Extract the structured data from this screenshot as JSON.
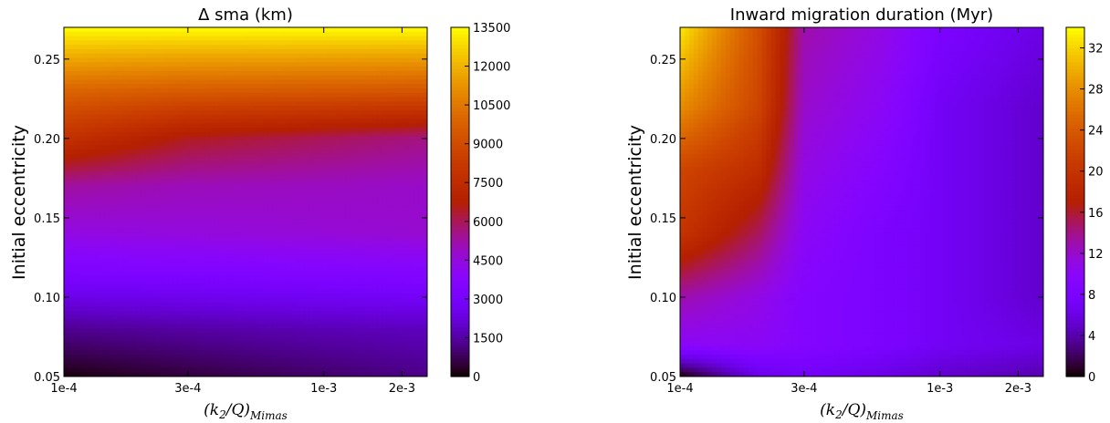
{
  "chart_data": [
    {
      "type": "heatmap",
      "title": "Δ sma (km)",
      "xlabel": "(k2/Q)Mimas",
      "xlabel_main": "(k",
      "xlabel_sub1": "2",
      "xlabel_mid": "/Q)",
      "xlabel_sub2": "Mimas",
      "ylabel": "Initial eccentricity",
      "xscale": "log",
      "xlim": [
        0.0001,
        0.0025
      ],
      "ylim": [
        0.05,
        0.27
      ],
      "xticks": [
        {
          "value": 0.0001,
          "label": "1e-4"
        },
        {
          "value": 0.0003,
          "label": "3e-4"
        },
        {
          "value": 0.001,
          "label": "1e-3"
        },
        {
          "value": 0.002,
          "label": "2e-3"
        }
      ],
      "yticks": [
        {
          "value": 0.05,
          "label": "0.05"
        },
        {
          "value": 0.1,
          "label": "0.10"
        },
        {
          "value": 0.15,
          "label": "0.15"
        },
        {
          "value": 0.2,
          "label": "0.20"
        },
        {
          "value": 0.25,
          "label": "0.25"
        }
      ],
      "colormap": "gnuplot",
      "color_range": [
        0,
        13500
      ],
      "colorbar_ticks": [
        {
          "value": 0,
          "label": "0"
        },
        {
          "value": 1500,
          "label": "1500"
        },
        {
          "value": 3000,
          "label": "3000"
        },
        {
          "value": 4500,
          "label": "4500"
        },
        {
          "value": 6000,
          "label": "6000"
        },
        {
          "value": 7500,
          "label": "7500"
        },
        {
          "value": 9000,
          "label": "9000"
        },
        {
          "value": 10500,
          "label": "10500"
        },
        {
          "value": 12000,
          "label": "12000"
        },
        {
          "value": 13500,
          "label": "13500"
        }
      ],
      "grid": false,
      "sample_x": [
        0.0001,
        0.0003,
        0.001,
        0.0025
      ],
      "sample_y": [
        0.05,
        0.08,
        0.11,
        0.14,
        0.17,
        0.2,
        0.23,
        0.27
      ],
      "sample_values": [
        [
          100,
          500,
          900,
          1200
        ],
        [
          1300,
          1500,
          1700,
          1800
        ],
        [
          3000,
          3100,
          3200,
          3300
        ],
        [
          4400,
          4500,
          4600,
          4700
        ],
        [
          5300,
          5000,
          4900,
          4800
        ],
        [
          7800,
          6500,
          6000,
          5600
        ],
        [
          9900,
          9600,
          9500,
          9400
        ],
        [
          13500,
          13500,
          13500,
          13500
        ]
      ]
    },
    {
      "type": "heatmap",
      "title": "Inward migration duration (Myr)",
      "xlabel": "(k2/Q)Mimas",
      "xlabel_main": "(k",
      "xlabel_sub1": "2",
      "xlabel_mid": "/Q)",
      "xlabel_sub2": "Mimas",
      "ylabel": "Initial eccentricity",
      "xscale": "log",
      "xlim": [
        0.0001,
        0.0025
      ],
      "ylim": [
        0.05,
        0.27
      ],
      "xticks": [
        {
          "value": 0.0001,
          "label": "1e-4"
        },
        {
          "value": 0.0003,
          "label": "3e-4"
        },
        {
          "value": 0.001,
          "label": "1e-3"
        },
        {
          "value": 0.002,
          "label": "2e-3"
        }
      ],
      "yticks": [
        {
          "value": 0.05,
          "label": "0.05"
        },
        {
          "value": 0.1,
          "label": "0.10"
        },
        {
          "value": 0.15,
          "label": "0.15"
        },
        {
          "value": 0.2,
          "label": "0.20"
        },
        {
          "value": 0.25,
          "label": "0.25"
        }
      ],
      "colormap": "gnuplot",
      "color_range": [
        0,
        34
      ],
      "colorbar_ticks": [
        {
          "value": 0,
          "label": "0"
        },
        {
          "value": 4,
          "label": "4"
        },
        {
          "value": 8,
          "label": "8"
        },
        {
          "value": 12,
          "label": "12"
        },
        {
          "value": 16,
          "label": "16"
        },
        {
          "value": 20,
          "label": "20"
        },
        {
          "value": 24,
          "label": "24"
        },
        {
          "value": 28,
          "label": "28"
        },
        {
          "value": 32,
          "label": "32"
        }
      ],
      "grid": false,
      "sample_x": [
        0.0001,
        0.0002,
        0.0003,
        0.0006,
        0.001,
        0.0025
      ],
      "sample_y": [
        0.05,
        0.07,
        0.1,
        0.14,
        0.18,
        0.22,
        0.27
      ],
      "sample_values": [
        [
          0,
          6,
          7,
          6,
          5,
          4
        ],
        [
          10,
          10,
          9,
          8,
          7,
          6
        ],
        [
          13,
          11,
          9,
          8,
          7,
          5
        ],
        [
          20,
          15,
          10,
          8,
          7,
          5
        ],
        [
          22,
          19,
          11,
          9,
          7,
          5
        ],
        [
          28,
          22,
          12,
          10,
          7,
          5
        ],
        [
          33,
          23,
          13,
          11,
          8,
          6
        ]
      ]
    }
  ]
}
